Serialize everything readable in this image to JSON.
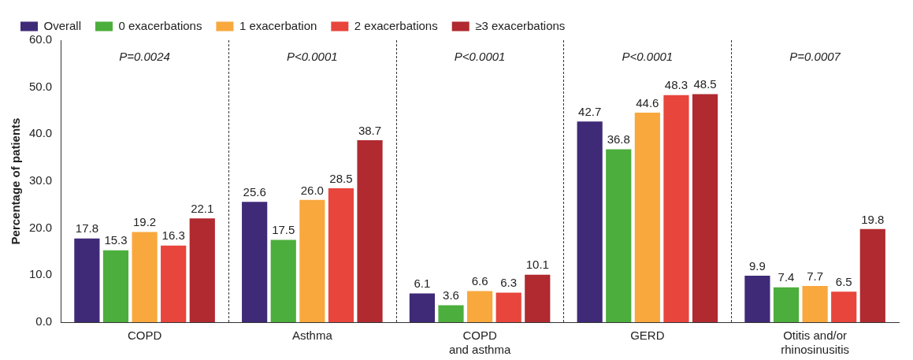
{
  "chart_data": {
    "type": "bar",
    "ylabel": "Percentage of patients",
    "categories": [
      "COPD",
      "Asthma",
      "COPD\nand asthma",
      "GERD",
      "Otitis and/or\nrhinosinusitis"
    ],
    "series": [
      {
        "name": "Overall",
        "color": "#3f2a78",
        "values": [
          17.8,
          25.6,
          6.1,
          42.7,
          9.9
        ],
        "value_labels": [
          "17.8",
          "25.6",
          "6.1",
          "42.7",
          "9.9"
        ]
      },
      {
        "name": "0 exacerbations",
        "color": "#4cae3c",
        "values": [
          15.3,
          17.5,
          3.6,
          36.8,
          7.4
        ],
        "value_labels": [
          "15.3",
          "17.5",
          "3.6",
          "36.8",
          "7.4"
        ]
      },
      {
        "name": "1 exacerbation",
        "color": "#f9a83e",
        "values": [
          19.2,
          26.0,
          6.6,
          44.6,
          7.7
        ],
        "value_labels": [
          "19.2",
          "26.0",
          "6.6",
          "44.6",
          "7.7"
        ]
      },
      {
        "name": "2 exacerbations",
        "color": "#e8453c",
        "values": [
          16.3,
          28.5,
          6.3,
          48.3,
          6.5
        ],
        "value_labels": [
          "16.3",
          "28.5",
          "6.3",
          "48.3",
          "6.5"
        ]
      },
      {
        "name": "≥3 exacerbations",
        "color": "#b02a30",
        "values": [
          22.1,
          38.7,
          10.1,
          48.5,
          19.8
        ],
        "value_labels": [
          "22.1",
          "38.7",
          "10.1",
          "48.5",
          "19.8"
        ]
      }
    ],
    "ylim": [
      0,
      60
    ],
    "yticks": [
      {
        "value": 0,
        "label": "0.0"
      },
      {
        "value": 10,
        "label": "10.0"
      },
      {
        "value": 20,
        "label": "20.0"
      },
      {
        "value": 30,
        "label": "30.0"
      },
      {
        "value": 40,
        "label": "40.0"
      },
      {
        "value": 50,
        "label": "50.0"
      },
      {
        "value": 60,
        "label": "60.0"
      }
    ],
    "grid": false,
    "legend": "top left",
    "annotations": [
      "P=0.0024",
      "P<0.0001",
      "P<0.0001",
      "P<0.0001",
      "P=0.0007"
    ]
  }
}
